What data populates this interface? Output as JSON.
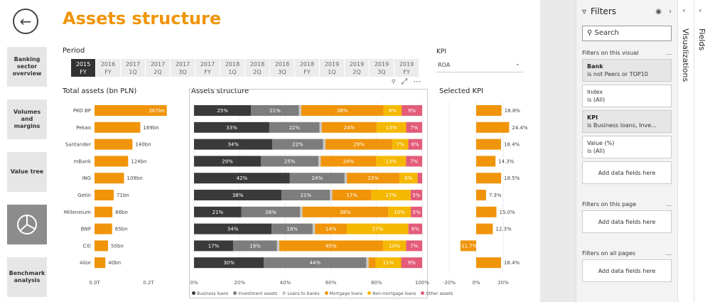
{
  "page": {
    "title": "Assets structure"
  },
  "nav": [
    {
      "label": "Banking sector overview",
      "icon": "banking-sector-overview-icon"
    },
    {
      "label": "Volumes and margins",
      "icon": "volumes-icon"
    },
    {
      "label": "Value tree",
      "icon": "value-tree-icon"
    },
    {
      "label": "",
      "icon": "pie-chart-icon"
    },
    {
      "label": "Benchmark analysis",
      "icon": "benchmark-icon"
    }
  ],
  "period": {
    "label": "Period",
    "tabs": [
      [
        "2015",
        "FY"
      ],
      [
        "2016",
        "FY"
      ],
      [
        "2017",
        "1Q"
      ],
      [
        "2017",
        "2Q"
      ],
      [
        "2017",
        "3Q"
      ],
      [
        "2017",
        "FY"
      ],
      [
        "2018",
        "1Q"
      ],
      [
        "2018",
        "2Q"
      ],
      [
        "2018",
        "3Q"
      ],
      [
        "2018",
        "FY"
      ],
      [
        "2019",
        "1Q"
      ],
      [
        "2019",
        "2Q"
      ],
      [
        "2019",
        "3Q"
      ],
      [
        "2019",
        "FY"
      ]
    ],
    "selected": 0
  },
  "kpi": {
    "label": "KPI",
    "value": "ROA"
  },
  "chart_data": [
    {
      "type": "bar",
      "title": "Total assets (bn PLN)",
      "categories": [
        "PKO BP",
        "Pekao",
        "Santander",
        "mBank",
        "ING",
        "Getin",
        "Millennium",
        "BNP",
        "Citi",
        "Alior"
      ],
      "values": [
        267,
        169,
        140,
        124,
        109,
        71,
        66,
        65,
        50,
        40
      ],
      "labels": [
        "267bn",
        "169bn",
        "140bn",
        "124bn",
        "109bn",
        "71bn",
        "66bn",
        "65bn",
        "50bn",
        "40bn"
      ],
      "xticks": [
        "0.0T",
        "0.2T"
      ],
      "color": "#f0940a"
    },
    {
      "type": "bar",
      "title": "Assets structure",
      "stacked": true,
      "categories": [
        "PKO BP",
        "Pekao",
        "Santander",
        "mBank",
        "ING",
        "Getin",
        "Millennium",
        "BNP",
        "Citi",
        "Alior"
      ],
      "series": [
        {
          "name": "Business loans",
          "color": "#3a3a3a",
          "values": [
            25,
            33,
            34,
            29,
            42,
            38,
            21,
            34,
            17,
            30
          ]
        },
        {
          "name": "Investment assets",
          "color": "#7d7d7d",
          "values": [
            21,
            22,
            22,
            25,
            24,
            21,
            26,
            18,
            19,
            44
          ]
        },
        {
          "name": "Loans to banks",
          "color": "#c8c8c8",
          "values": [
            1,
            1,
            1,
            1,
            1,
            1,
            1,
            1,
            1,
            1
          ]
        },
        {
          "name": "Mortgage loans",
          "color": "#f0940a",
          "values": [
            36,
            24,
            29,
            24,
            23,
            17,
            38,
            14,
            45,
            3
          ]
        },
        {
          "name": "Non-mortgage loans",
          "color": "#f5b800",
          "values": [
            8,
            13,
            7,
            13,
            8,
            17,
            10,
            27,
            10,
            11
          ]
        },
        {
          "name": "Other assets",
          "color": "#e35c7a",
          "values": [
            9,
            7,
            6,
            7,
            2,
            5,
            5,
            6,
            7,
            9
          ]
        }
      ],
      "shown_labels": [
        [
          "25%",
          "21%",
          "",
          "36%",
          "8%",
          "9%"
        ],
        [
          "33%",
          "22%",
          "",
          "24%",
          "13%",
          "7%"
        ],
        [
          "34%",
          "22%",
          "",
          "29%",
          "7%",
          "6%"
        ],
        [
          "29%",
          "25%",
          "",
          "24%",
          "13%",
          "7%"
        ],
        [
          "42%",
          "24%",
          "",
          "23%",
          "8%",
          ""
        ],
        [
          "38%",
          "21%",
          "",
          "17%",
          "17%",
          "5%"
        ],
        [
          "21%",
          "26%",
          "",
          "38%",
          "10%",
          "5%"
        ],
        [
          "34%",
          "18%",
          "",
          "14%",
          "27%",
          "6%"
        ],
        [
          "17%",
          "19%",
          "",
          "45%",
          "10%",
          "7%"
        ],
        [
          "30%",
          "44%",
          "",
          "",
          "11%",
          "9%"
        ]
      ],
      "xticks": [
        "0%",
        "20%",
        "40%",
        "60%",
        "80%",
        "100%"
      ],
      "xlim": [
        0,
        100
      ]
    },
    {
      "type": "bar",
      "title": "Selected KPI",
      "categories": [
        "PKO BP",
        "Pekao",
        "Santander",
        "mBank",
        "ING",
        "Getin",
        "Millennium",
        "BNP",
        "Citi",
        "Alior"
      ],
      "values": [
        18.8,
        24.4,
        18.4,
        14.3,
        18.5,
        7.3,
        15.0,
        12.3,
        -11.7,
        18.4
      ],
      "labels": [
        "18.8%",
        "24.4%",
        "18.4%",
        "14.3%",
        "18.5%",
        "7.3%",
        "15.0%",
        "12.3%",
        "-11.7%",
        "18.4%"
      ],
      "xticks": [
        "-20%",
        "0%",
        "20%"
      ],
      "xlim": [
        -20,
        25
      ],
      "color": "#f0940a"
    }
  ],
  "filters": {
    "title": "Filters",
    "search_placeholder": "Search",
    "on_visual_label": "Filters on this visual",
    "on_page_label": "Filters on this page",
    "on_all_label": "Filters on all pages",
    "add_label": "Add data fields here",
    "more": "...",
    "cards": [
      {
        "name": "Bank",
        "value": "is not Peers or TOP10",
        "highlight": true
      },
      {
        "name": "Index",
        "value": "is (All)",
        "highlight": false
      },
      {
        "name": "KPI",
        "value": "is Business loans, Inve...",
        "highlight": true
      },
      {
        "name": "Value (%)",
        "value": "is (All)",
        "highlight": false
      }
    ]
  },
  "panes": {
    "visualizations": "Visualizations",
    "fields": "Fields"
  }
}
